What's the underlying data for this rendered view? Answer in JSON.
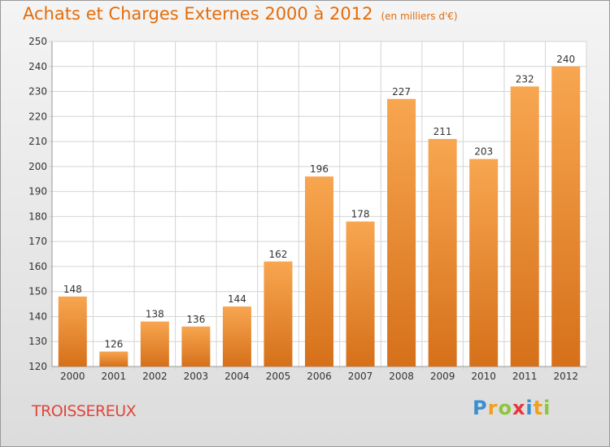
{
  "chart_data": {
    "type": "bar",
    "title": "Achats et Charges Externes 2000 à 2012",
    "subtitle": "(en milliers d'€)",
    "categories": [
      "2000",
      "2001",
      "2002",
      "2003",
      "2004",
      "2005",
      "2006",
      "2007",
      "2008",
      "2009",
      "2010",
      "2011",
      "2012"
    ],
    "values": [
      148,
      126,
      138,
      136,
      144,
      162,
      196,
      178,
      227,
      211,
      203,
      232,
      240
    ],
    "ylim": [
      120,
      250
    ],
    "yticks": [
      120,
      130,
      140,
      150,
      160,
      170,
      180,
      190,
      200,
      210,
      220,
      230,
      240,
      250
    ],
    "grid": true,
    "bar_color_top": "#f8a650",
    "bar_color_bottom": "#d6701a"
  },
  "footer": {
    "town": "TROISSEREUX",
    "logo": {
      "letters": [
        "P",
        "r",
        "o",
        "x",
        "i",
        "t",
        "i"
      ],
      "colors": [
        "#3a8fd0",
        "#f0a020",
        "#8cc63e",
        "#e8353a",
        "#3a8fd0",
        "#f0a020",
        "#8cc63e"
      ]
    }
  }
}
